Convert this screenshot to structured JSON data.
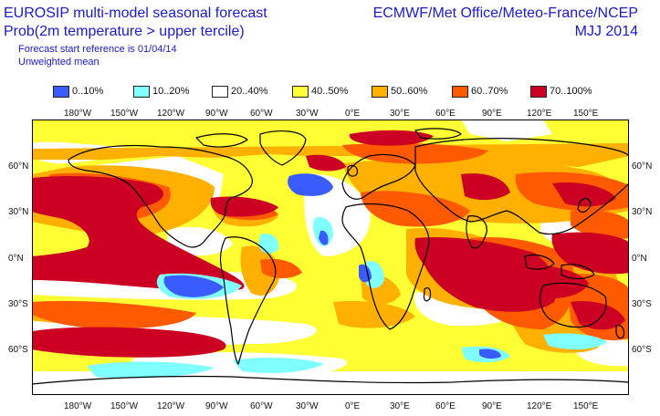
{
  "header": {
    "title_line1": "EUROSIP multi-model seasonal forecast",
    "title_line2": "Prob(2m temperature > upper tercile)",
    "forecast_start": "Forecast start reference is 01/04/14",
    "weighting": "Unweighted mean",
    "centres": "ECMWF/Met Office/Meteo-France/NCEP",
    "season": "MJJ 2014"
  },
  "legend": [
    {
      "label": "0..10%",
      "color": "#3a5cff"
    },
    {
      "label": "10..20%",
      "color": "#80ffff"
    },
    {
      "label": "20..40%",
      "color": "#ffffff"
    },
    {
      "label": "40..50%",
      "color": "#ffff33"
    },
    {
      "label": "50..60%",
      "color": "#ffb000"
    },
    {
      "label": "60..70%",
      "color": "#ff5a00"
    },
    {
      "label": "70..100%",
      "color": "#cc0022"
    }
  ],
  "axes": {
    "lon_labels": [
      "180°W",
      "150°W",
      "120°W",
      "90°W",
      "60°W",
      "30°W",
      "0°E",
      "30°E",
      "60°E",
      "90°E",
      "120°E",
      "150°E"
    ],
    "lat_labels": [
      "60°N",
      "30°N",
      "0°N",
      "30°S",
      "60°S"
    ]
  }
}
